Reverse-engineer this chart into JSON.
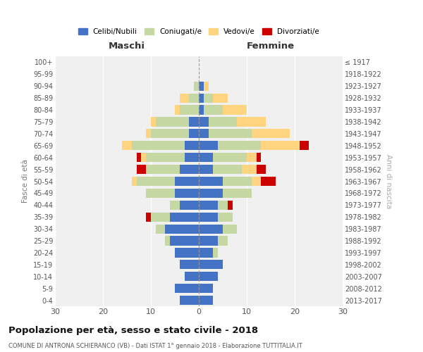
{
  "age_groups": [
    "0-4",
    "5-9",
    "10-14",
    "15-19",
    "20-24",
    "25-29",
    "30-34",
    "35-39",
    "40-44",
    "45-49",
    "50-54",
    "55-59",
    "60-64",
    "65-69",
    "70-74",
    "75-79",
    "80-84",
    "85-89",
    "90-94",
    "95-99",
    "100+"
  ],
  "birth_years": [
    "2013-2017",
    "2008-2012",
    "2003-2007",
    "1998-2002",
    "1993-1997",
    "1988-1992",
    "1983-1987",
    "1978-1982",
    "1973-1977",
    "1968-1972",
    "1963-1967",
    "1958-1962",
    "1953-1957",
    "1948-1952",
    "1943-1947",
    "1938-1942",
    "1933-1937",
    "1928-1932",
    "1923-1927",
    "1918-1922",
    "≤ 1917"
  ],
  "maschi": {
    "celibi": [
      4,
      5,
      3,
      4,
      5,
      6,
      7,
      6,
      4,
      5,
      5,
      4,
      3,
      3,
      2,
      2,
      0,
      0,
      0,
      0,
      0
    ],
    "coniugati": [
      0,
      0,
      0,
      0,
      0,
      1,
      2,
      4,
      2,
      6,
      8,
      7,
      8,
      11,
      8,
      7,
      4,
      2,
      1,
      0,
      0
    ],
    "vedovi": [
      0,
      0,
      0,
      0,
      0,
      0,
      0,
      0,
      0,
      0,
      1,
      0,
      1,
      2,
      1,
      1,
      1,
      2,
      0,
      0,
      0
    ],
    "divorziati": [
      0,
      0,
      0,
      0,
      0,
      0,
      0,
      1,
      0,
      0,
      0,
      2,
      1,
      0,
      0,
      0,
      0,
      0,
      0,
      0,
      0
    ]
  },
  "femmine": {
    "nubili": [
      3,
      3,
      4,
      5,
      3,
      4,
      5,
      4,
      4,
      5,
      5,
      3,
      3,
      4,
      2,
      2,
      1,
      1,
      1,
      0,
      0
    ],
    "coniugate": [
      0,
      0,
      0,
      0,
      1,
      2,
      3,
      3,
      2,
      6,
      6,
      6,
      7,
      9,
      9,
      6,
      4,
      2,
      0,
      0,
      0
    ],
    "vedove": [
      0,
      0,
      0,
      0,
      0,
      0,
      0,
      0,
      0,
      0,
      2,
      3,
      2,
      8,
      8,
      6,
      5,
      3,
      1,
      0,
      0
    ],
    "divorziate": [
      0,
      0,
      0,
      0,
      0,
      0,
      0,
      0,
      1,
      0,
      3,
      2,
      1,
      2,
      0,
      0,
      0,
      0,
      0,
      0,
      0
    ]
  },
  "colors": {
    "celibi": "#4472C4",
    "coniugati": "#c5d8a4",
    "vedovi": "#FFD480",
    "divorziati": "#CC0000"
  },
  "title": "Popolazione per età, sesso e stato civile - 2018",
  "subtitle": "COMUNE DI ANTRONA SCHIERANCO (VB) - Dati ISTAT 1° gennaio 2018 - Elaborazione TUTTITALIA.IT",
  "xlabel_left": "Maschi",
  "xlabel_right": "Femmine",
  "ylabel_left": "Fasce di età",
  "ylabel_right": "Anni di nascita",
  "legend_labels": [
    "Celibi/Nubili",
    "Coniugati/e",
    "Vedovi/e",
    "Divorziati/e"
  ],
  "xlim": 30,
  "background": "#ffffff",
  "bg_axes": "#f0f0f0"
}
